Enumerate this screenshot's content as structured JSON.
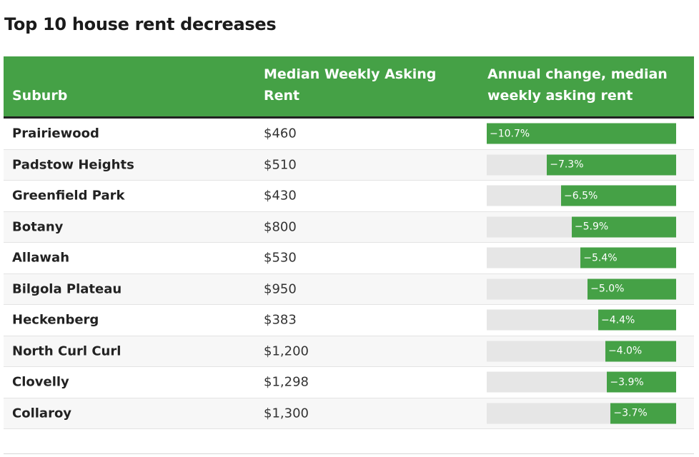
{
  "title": "Top 10 house rent decreases",
  "columns": {
    "suburb": "Suburb",
    "rent": "Median Weekly Asking Rent",
    "change": "Annual change, median weekly asking rent"
  },
  "colors": {
    "header_bg": "#45a146",
    "bar": "#45a146",
    "track": "#e6e6e6"
  },
  "chart_data": {
    "type": "table",
    "title": "Top 10 house rent decreases",
    "columns": [
      "Suburb",
      "Median Weekly Asking Rent",
      "Annual change, median weekly asking rent"
    ],
    "max_abs_change": 10.7,
    "rows": [
      {
        "suburb": "Prairiewood",
        "rent": "$460",
        "change": -10.7,
        "change_label": "−10.7%"
      },
      {
        "suburb": "Padstow Heights",
        "rent": "$510",
        "change": -7.3,
        "change_label": "−7.3%"
      },
      {
        "suburb": "Greenfield Park",
        "rent": "$430",
        "change": -6.5,
        "change_label": "−6.5%"
      },
      {
        "suburb": "Botany",
        "rent": "$800",
        "change": -5.9,
        "change_label": "−5.9%"
      },
      {
        "suburb": "Allawah",
        "rent": "$530",
        "change": -5.4,
        "change_label": "−5.4%"
      },
      {
        "suburb": "Bilgola Plateau",
        "rent": "$950",
        "change": -5.0,
        "change_label": "−5.0%"
      },
      {
        "suburb": "Heckenberg",
        "rent": "$383",
        "change": -4.4,
        "change_label": "−4.4%"
      },
      {
        "suburb": "North Curl Curl",
        "rent": "$1,200",
        "change": -4.0,
        "change_label": "−4.0%"
      },
      {
        "suburb": "Clovelly",
        "rent": "$1,298",
        "change": -3.9,
        "change_label": "−3.9%"
      },
      {
        "suburb": "Collaroy",
        "rent": "$1,300",
        "change": -3.7,
        "change_label": "−3.7%"
      }
    ]
  }
}
